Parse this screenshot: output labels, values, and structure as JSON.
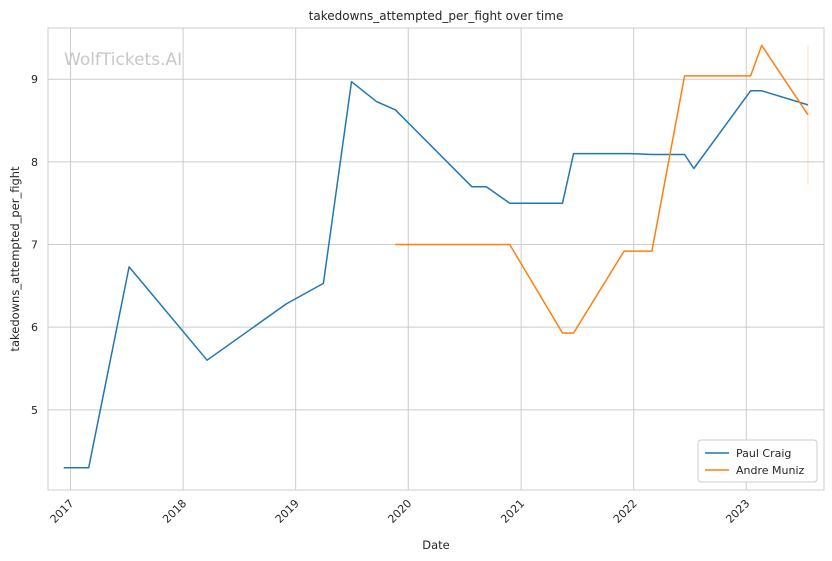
{
  "chart_data": {
    "type": "line",
    "title": "takedowns_attempted_per_fight over time",
    "xlabel": "Date",
    "ylabel": "takedowns_attempted_per_fight",
    "watermark": "WolfTickets.AI",
    "x_ticks": [
      "2017",
      "2018",
      "2019",
      "2020",
      "2021",
      "2022",
      "2023"
    ],
    "y_ticks": [
      "5",
      "6",
      "7",
      "8",
      "9"
    ],
    "xlim": [
      "2016-10-20",
      "2023-09-10"
    ],
    "ylim": [
      4.03,
      9.62
    ],
    "grid": true,
    "legend_position": "lower-right",
    "series": [
      {
        "name": "Paul Craig",
        "color": "#1f77b4",
        "points": [
          [
            "2016-12-10",
            4.3
          ],
          [
            "2017-03-01",
            4.3
          ],
          [
            "2017-07-10",
            6.73
          ],
          [
            "2018-03-20",
            5.6
          ],
          [
            "2018-12-01",
            6.28
          ],
          [
            "2019-04-01",
            6.53
          ],
          [
            "2019-07-01",
            8.97
          ],
          [
            "2019-09-20",
            8.73
          ],
          [
            "2019-11-20",
            8.63
          ],
          [
            "2020-07-25",
            7.7
          ],
          [
            "2020-09-10",
            7.7
          ],
          [
            "2020-11-25",
            7.5
          ],
          [
            "2021-05-15",
            7.5
          ],
          [
            "2021-06-20",
            8.1
          ],
          [
            "2021-12-20",
            8.1
          ],
          [
            "2022-03-01",
            8.09
          ],
          [
            "2022-06-15",
            8.09
          ],
          [
            "2022-07-15",
            7.92
          ],
          [
            "2023-01-15",
            8.86
          ],
          [
            "2023-02-20",
            8.86
          ],
          [
            "2023-07-20",
            8.69
          ]
        ]
      },
      {
        "name": "Andre Muniz",
        "color": "#ff7f0e",
        "points": [
          [
            "2019-11-20",
            7.0
          ],
          [
            "2020-11-25",
            7.0
          ],
          [
            "2021-05-15",
            5.93
          ],
          [
            "2021-06-20",
            5.93
          ],
          [
            "2021-12-01",
            6.92
          ],
          [
            "2022-03-01",
            6.92
          ],
          [
            "2022-06-15",
            9.04
          ],
          [
            "2023-01-15",
            9.04
          ],
          [
            "2023-02-20",
            9.41
          ],
          [
            "2023-07-20",
            8.57
          ]
        ],
        "error_band": {
          "x": "2023-07-20",
          "low": 7.72,
          "high": 9.41
        }
      }
    ]
  }
}
